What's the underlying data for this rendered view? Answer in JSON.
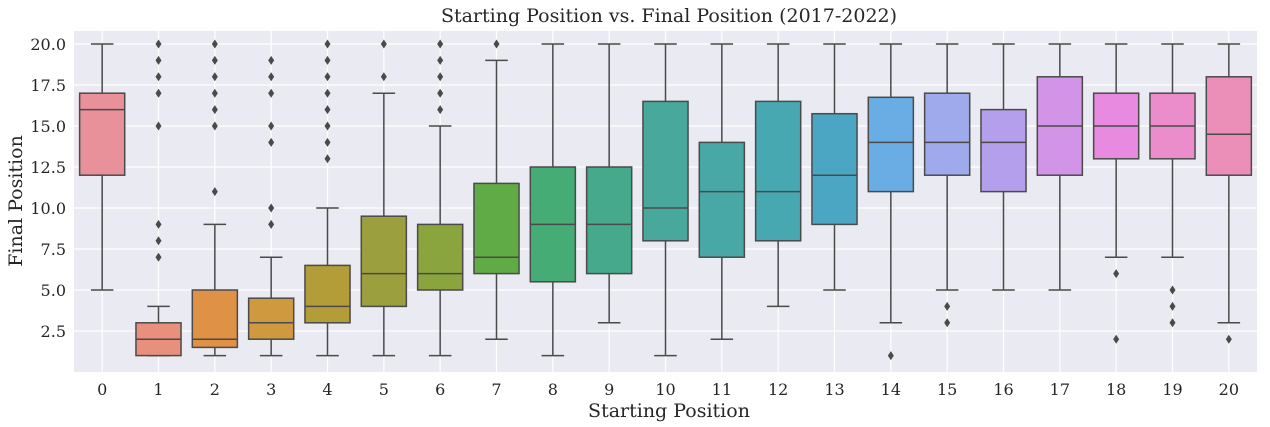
{
  "chart_data": {
    "type": "box",
    "title": "Starting Position vs. Final Position (2017-2022)",
    "xlabel": "Starting Position",
    "ylabel": "Final Position",
    "ylim": [
      0,
      21
    ],
    "yticks": [
      "2.5",
      "5.0",
      "7.5",
      "10.0",
      "12.5",
      "15.0",
      "17.5",
      "20.0"
    ],
    "grid": true,
    "background": "#eaeaf2",
    "line_color": "#4a4a4a",
    "categories": [
      "0",
      "1",
      "2",
      "3",
      "4",
      "5",
      "6",
      "7",
      "8",
      "9",
      "10",
      "11",
      "12",
      "13",
      "14",
      "15",
      "16",
      "17",
      "18",
      "19",
      "20"
    ],
    "boxes": [
      {
        "label": "0",
        "whislo": 5,
        "q1": 12,
        "med": 16,
        "q3": 17,
        "whishi": 20,
        "fliers": [],
        "color": "#e8919a"
      },
      {
        "label": "1",
        "whislo": 1,
        "q1": 1,
        "med": 2,
        "q3": 3,
        "whishi": 4,
        "fliers": [
          7,
          8,
          9,
          15,
          17,
          18,
          19,
          20
        ],
        "color": "#e8907d"
      },
      {
        "label": "2",
        "whislo": 1,
        "q1": 1.5,
        "med": 2,
        "q3": 5,
        "whishi": 9,
        "fliers": [
          11,
          15,
          16,
          17,
          18,
          19,
          20
        ],
        "color": "#df9246"
      },
      {
        "label": "3",
        "whislo": 1,
        "q1": 2,
        "med": 3,
        "q3": 4.5,
        "whishi": 7,
        "fliers": [
          9,
          10,
          14,
          15,
          17,
          18,
          19
        ],
        "color": "#cf9a3f"
      },
      {
        "label": "4",
        "whislo": 1,
        "q1": 3,
        "med": 4,
        "q3": 6.5,
        "whishi": 10,
        "fliers": [
          13,
          14,
          15,
          16,
          17,
          18,
          19,
          20
        ],
        "color": "#b29d38"
      },
      {
        "label": "5",
        "whislo": 1,
        "q1": 4,
        "med": 6,
        "q3": 9.5,
        "whishi": 17,
        "fliers": [
          18,
          20
        ],
        "color": "#9c9f3d"
      },
      {
        "label": "6",
        "whislo": 1,
        "q1": 5,
        "med": 6,
        "q3": 9,
        "whishi": 15,
        "fliers": [
          16,
          17,
          18,
          19,
          20
        ],
        "color": "#8aa43e"
      },
      {
        "label": "7",
        "whislo": 2,
        "q1": 6,
        "med": 7,
        "q3": 11.5,
        "whishi": 19,
        "fliers": [
          20
        ],
        "color": "#61ab47"
      },
      {
        "label": "8",
        "whislo": 1,
        "q1": 5.5,
        "med": 9,
        "q3": 12.5,
        "whishi": 20,
        "fliers": [],
        "color": "#45ac76"
      },
      {
        "label": "9",
        "whislo": 3,
        "q1": 6,
        "med": 9,
        "q3": 12.5,
        "whishi": 20,
        "fliers": [],
        "color": "#46a98b"
      },
      {
        "label": "10",
        "whislo": 1,
        "q1": 8,
        "med": 10,
        "q3": 16.5,
        "whishi": 20,
        "fliers": [],
        "color": "#48a89c"
      },
      {
        "label": "11",
        "whislo": 2,
        "q1": 7,
        "med": 11,
        "q3": 14,
        "whishi": 20,
        "fliers": [],
        "color": "#47a8a6"
      },
      {
        "label": "12",
        "whislo": 4,
        "q1": 8,
        "med": 11,
        "q3": 16.5,
        "whishi": 20,
        "fliers": [],
        "color": "#48a8b1"
      },
      {
        "label": "13",
        "whislo": 5,
        "q1": 9,
        "med": 12,
        "q3": 15.75,
        "whishi": 20,
        "fliers": [],
        "color": "#4aa6c3"
      },
      {
        "label": "14",
        "whislo": 3,
        "q1": 11,
        "med": 14,
        "q3": 16.75,
        "whishi": 20,
        "fliers": [
          1
        ],
        "color": "#6aace4"
      },
      {
        "label": "15",
        "whislo": 5,
        "q1": 12,
        "med": 14,
        "q3": 17,
        "whishi": 20,
        "fliers": [
          3,
          4
        ],
        "color": "#9eaaeb"
      },
      {
        "label": "16",
        "whislo": 5,
        "q1": 11,
        "med": 14,
        "q3": 16,
        "whishi": 20,
        "fliers": [],
        "color": "#b49fec"
      },
      {
        "label": "17",
        "whislo": 5,
        "q1": 12,
        "med": 15,
        "q3": 18,
        "whishi": 20,
        "fliers": [],
        "color": "#d194e6"
      },
      {
        "label": "18",
        "whislo": 7,
        "q1": 13,
        "med": 15,
        "q3": 17,
        "whishi": 20,
        "fliers": [
          2,
          6
        ],
        "color": "#e88ae0"
      },
      {
        "label": "19",
        "whislo": 7,
        "q1": 13,
        "med": 15,
        "q3": 17,
        "whishi": 20,
        "fliers": [
          3,
          4,
          5
        ],
        "color": "#ea8dca"
      },
      {
        "label": "20",
        "whislo": 3,
        "q1": 12,
        "med": 14.5,
        "q3": 18,
        "whishi": 20,
        "fliers": [
          2
        ],
        "color": "#eb8fb8"
      }
    ]
  }
}
